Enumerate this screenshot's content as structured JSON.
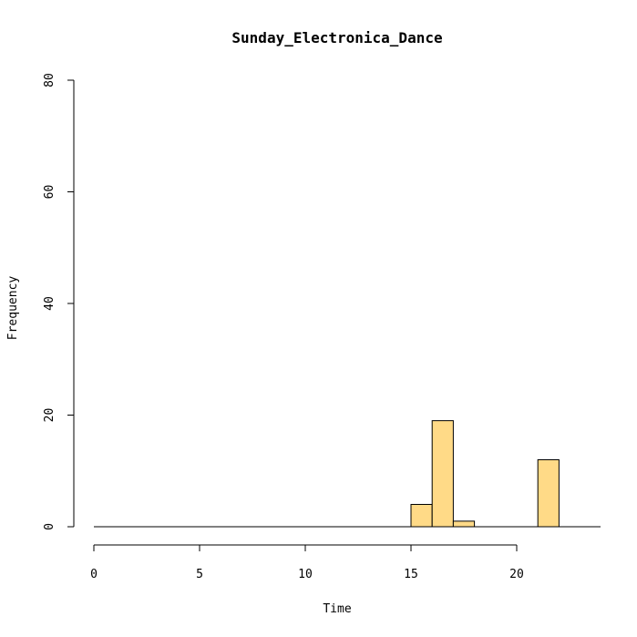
{
  "chart_data": {
    "type": "histogram",
    "title": "Sunday_Electronica_Dance",
    "xlabel": "Time",
    "ylabel": "Frequency",
    "xlim": [
      0,
      24
    ],
    "ylim": [
      0,
      80
    ],
    "x_ticks": [
      0,
      5,
      10,
      15,
      20
    ],
    "y_ticks": [
      0,
      20,
      40,
      60,
      80
    ],
    "bin_width": 1,
    "bins": [
      {
        "start": 0,
        "end": 1,
        "count": 0
      },
      {
        "start": 1,
        "end": 2,
        "count": 0
      },
      {
        "start": 2,
        "end": 3,
        "count": 0
      },
      {
        "start": 3,
        "end": 4,
        "count": 0
      },
      {
        "start": 4,
        "end": 5,
        "count": 0
      },
      {
        "start": 5,
        "end": 6,
        "count": 0
      },
      {
        "start": 6,
        "end": 7,
        "count": 0
      },
      {
        "start": 7,
        "end": 8,
        "count": 0
      },
      {
        "start": 8,
        "end": 9,
        "count": 0
      },
      {
        "start": 9,
        "end": 10,
        "count": 0
      },
      {
        "start": 10,
        "end": 11,
        "count": 0
      },
      {
        "start": 11,
        "end": 12,
        "count": 0
      },
      {
        "start": 12,
        "end": 13,
        "count": 0
      },
      {
        "start": 13,
        "end": 14,
        "count": 0
      },
      {
        "start": 14,
        "end": 15,
        "count": 0
      },
      {
        "start": 15,
        "end": 16,
        "count": 4
      },
      {
        "start": 16,
        "end": 17,
        "count": 19
      },
      {
        "start": 17,
        "end": 18,
        "count": 1
      },
      {
        "start": 18,
        "end": 19,
        "count": 0
      },
      {
        "start": 19,
        "end": 20,
        "count": 0
      },
      {
        "start": 20,
        "end": 21,
        "count": 0
      },
      {
        "start": 21,
        "end": 22,
        "count": 12
      }
    ],
    "bar_color": "#FFDA87",
    "grid": false
  }
}
